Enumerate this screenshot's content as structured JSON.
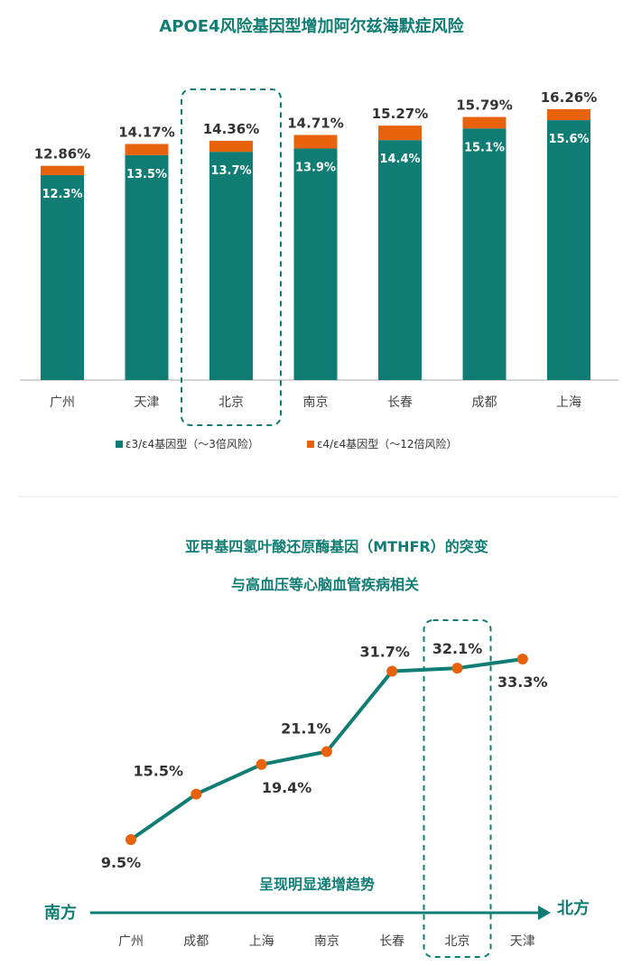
{
  "colors": {
    "teal": "#0f7d73",
    "orange": "#e8620e",
    "text": "#333333",
    "axis": "#aaaaaa"
  },
  "chart_data": [
    {
      "type": "bar",
      "stacked": true,
      "title": "APOE4风险基因型增加阿尔兹海默症风险",
      "categories": [
        "广州",
        "天津",
        "北京",
        "南京",
        "长春",
        "成都",
        "上海"
      ],
      "series": [
        {
          "name": "ε3/ε4基因型（～3倍风险）",
          "values": [
            12.3,
            13.5,
            13.7,
            13.9,
            14.4,
            15.1,
            15.6
          ],
          "labels": [
            "12.3%",
            "13.5%",
            "13.7%",
            "13.9%",
            "14.4%",
            "15.1%",
            "15.6%"
          ]
        },
        {
          "name": "ε4/ε4基因型（～12倍风险）",
          "values": [
            0.56,
            0.67,
            0.66,
            0.81,
            0.87,
            0.69,
            0.66
          ]
        }
      ],
      "totals": [
        12.86,
        14.17,
        14.36,
        14.71,
        15.27,
        15.79,
        16.26
      ],
      "total_labels": [
        "12.86%",
        "14.17%",
        "14.36%",
        "14.71%",
        "15.27%",
        "15.79%",
        "16.26%"
      ],
      "highlight": "北京",
      "ylim": [
        0,
        17.5
      ],
      "legend_position": "bottom",
      "grid": false
    },
    {
      "type": "line",
      "title_lines": [
        "亚甲基四氢叶酸还原酶基因（MTHFR）的突变",
        "与高血压等心脑血管疾病相关"
      ],
      "categories": [
        "广州",
        "成都",
        "上海",
        "南京",
        "长春",
        "北京",
        "天津"
      ],
      "values": [
        9.5,
        15.5,
        19.4,
        21.1,
        31.7,
        32.1,
        33.3
      ],
      "labels": [
        "9.5%",
        "15.5%",
        "19.4%",
        "21.1%",
        "31.7%",
        "32.1%",
        "33.3%"
      ],
      "highlight": "北京",
      "ylim": [
        5,
        35
      ],
      "grid": false,
      "annotation": "呈现明显递增趋势",
      "axis_start": "南方",
      "axis_end": "北方"
    }
  ]
}
